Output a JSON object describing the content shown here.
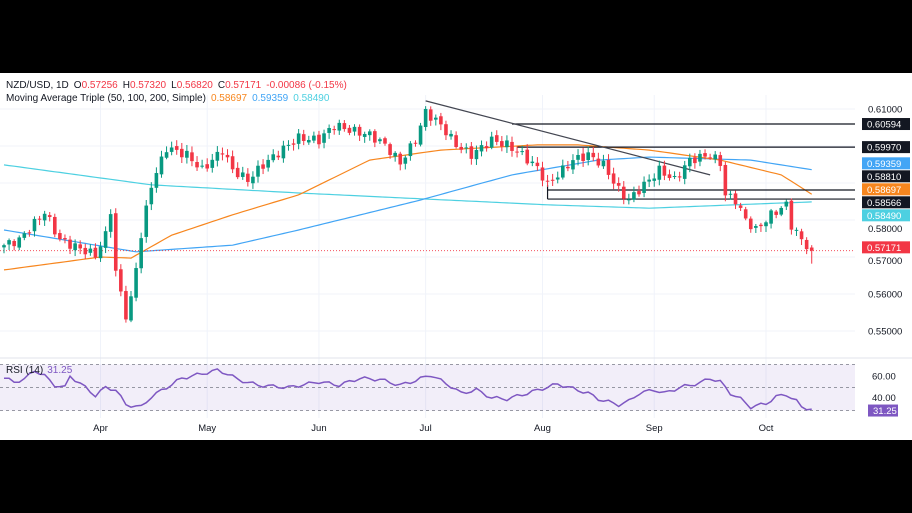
{
  "header": {
    "symbol": "NZD/USD, 1D",
    "o_label": "O",
    "o": "0.57256",
    "h_label": "H",
    "h": "0.57320",
    "l_label": "L",
    "l": "0.56820",
    "c_label": "C",
    "c": "0.57171",
    "change": "-0.00086 (-0.15%)",
    "ma_label": "Moving Average Triple (50, 100, 200, Simple)",
    "ma50": "0.58697",
    "ma100": "0.59359",
    "ma200": "0.58490",
    "rsi_label": "RSI (14)",
    "rsi_value": "31.25"
  },
  "colors": {
    "up": "#089981",
    "down": "#f23645",
    "ma50": "#f7861e",
    "ma100": "#42a5f5",
    "ma200": "#4dd0e1",
    "rsi": "#7e57c2"
  },
  "chart_data": {
    "type": "candlestick",
    "title": "NZD/USD, 1D",
    "bars": 160,
    "last_ohlc": [
      0.57256,
      0.5732,
      0.5682,
      0.57171
    ],
    "close_path": [
      [
        0,
        0.5732
      ],
      [
        3,
        0.5746
      ],
      [
        8,
        0.5822
      ],
      [
        11,
        0.5746
      ],
      [
        18,
        0.5705
      ],
      [
        20,
        0.5759
      ],
      [
        21,
        0.5827
      ],
      [
        22,
        0.5659
      ],
      [
        24,
        0.5543
      ],
      [
        25,
        0.5584
      ],
      [
        27,
        0.5759
      ],
      [
        29,
        0.5895
      ],
      [
        32,
        0.5995
      ],
      [
        36,
        0.5976
      ],
      [
        39,
        0.5935
      ],
      [
        43,
        0.5989
      ],
      [
        45,
        0.5935
      ],
      [
        48,
        0.5908
      ],
      [
        51,
        0.5949
      ],
      [
        56,
        0.6003
      ],
      [
        58,
        0.6022
      ],
      [
        62,
        0.6016
      ],
      [
        65,
        0.6057
      ],
      [
        68,
        0.6043
      ],
      [
        72,
        0.603
      ],
      [
        75,
        0.6003
      ],
      [
        78,
        0.5954
      ],
      [
        81,
        0.6016
      ],
      [
        83,
        0.6092
      ],
      [
        86,
        0.6057
      ],
      [
        89,
        0.6003
      ],
      [
        92,
        0.5976
      ],
      [
        96,
        0.6016
      ],
      [
        99,
        0.6003
      ],
      [
        102,
        0.5976
      ],
      [
        105,
        0.5941
      ],
      [
        107,
        0.5895
      ],
      [
        109,
        0.5922
      ],
      [
        112,
        0.5962
      ],
      [
        115,
        0.5976
      ],
      [
        118,
        0.5949
      ],
      [
        121,
        0.5881
      ],
      [
        123,
        0.5854
      ],
      [
        126,
        0.5895
      ],
      [
        129,
        0.5935
      ],
      [
        132,
        0.5908
      ],
      [
        135,
        0.5962
      ],
      [
        139,
        0.5976
      ],
      [
        141,
        0.5954
      ],
      [
        142,
        0.5868
      ],
      [
        144,
        0.5854
      ],
      [
        146,
        0.58
      ],
      [
        148,
        0.5773
      ],
      [
        151,
        0.5814
      ],
      [
        154,
        0.5841
      ],
      [
        155,
        0.5786
      ],
      [
        157,
        0.5746
      ],
      [
        159,
        0.57171
      ]
    ],
    "ma200_path": [
      [
        0,
        0.5949
      ],
      [
        29,
        0.5895
      ],
      [
        58,
        0.5873
      ],
      [
        107,
        0.5841
      ],
      [
        127,
        0.5832
      ],
      [
        159,
        0.5849
      ]
    ],
    "ma100_path": [
      [
        0,
        0.5773
      ],
      [
        26,
        0.5714
      ],
      [
        45,
        0.5732
      ],
      [
        58,
        0.5773
      ],
      [
        82,
        0.5854
      ],
      [
        100,
        0.5922
      ],
      [
        117,
        0.5962
      ],
      [
        127,
        0.597
      ],
      [
        147,
        0.5962
      ],
      [
        159,
        0.59359
      ]
    ],
    "ma50_path": [
      [
        0,
        0.5665
      ],
      [
        19,
        0.57
      ],
      [
        25,
        0.5697
      ],
      [
        33,
        0.5759
      ],
      [
        45,
        0.5814
      ],
      [
        58,
        0.5868
      ],
      [
        72,
        0.5962
      ],
      [
        86,
        0.5989
      ],
      [
        105,
        0.6003
      ],
      [
        113,
        0.6003
      ],
      [
        127,
        0.5989
      ],
      [
        141,
        0.5962
      ],
      [
        153,
        0.5922
      ],
      [
        159,
        0.58697
      ]
    ],
    "rsi_path": [
      [
        0,
        58
      ],
      [
        2,
        55
      ],
      [
        4,
        57
      ],
      [
        6,
        65
      ],
      [
        8,
        60
      ],
      [
        10,
        52
      ],
      [
        12,
        50
      ],
      [
        13,
        60
      ],
      [
        16,
        50
      ],
      [
        18,
        43
      ],
      [
        20,
        50
      ],
      [
        22,
        48
      ],
      [
        24,
        35
      ],
      [
        27,
        33
      ],
      [
        29,
        42
      ],
      [
        32,
        50
      ],
      [
        35,
        58
      ],
      [
        40,
        63
      ],
      [
        42,
        65
      ],
      [
        44,
        62
      ],
      [
        46,
        57
      ],
      [
        50,
        52
      ],
      [
        56,
        50
      ],
      [
        62,
        55
      ],
      [
        66,
        52
      ],
      [
        70,
        58
      ],
      [
        74,
        57
      ],
      [
        78,
        52
      ],
      [
        81,
        56
      ],
      [
        84,
        61
      ],
      [
        88,
        51
      ],
      [
        90,
        45
      ],
      [
        93,
        48
      ],
      [
        96,
        41
      ],
      [
        99,
        40
      ],
      [
        103,
        45
      ],
      [
        106,
        49
      ],
      [
        109,
        53
      ],
      [
        112,
        49
      ],
      [
        115,
        45
      ],
      [
        117,
        40
      ],
      [
        121,
        35
      ],
      [
        123,
        38
      ],
      [
        125,
        45
      ],
      [
        128,
        48
      ],
      [
        130,
        45
      ],
      [
        133,
        50
      ],
      [
        137,
        54
      ],
      [
        139,
        58
      ],
      [
        141,
        55
      ],
      [
        143,
        45
      ],
      [
        145,
        40
      ],
      [
        147,
        33
      ],
      [
        150,
        36
      ],
      [
        152,
        42
      ],
      [
        154,
        44
      ],
      [
        156,
        38
      ],
      [
        157,
        33
      ],
      [
        159,
        31.25
      ]
    ],
    "trendline": [
      [
        83,
        0.6122
      ],
      [
        139,
        0.5922
      ]
    ],
    "levels": [
      {
        "value": "0.60594",
        "from_bar": 100,
        "tag": "#131722"
      },
      {
        "value": "0.59970",
        "from_bar": 101,
        "tag": "#131722"
      },
      {
        "value": "0.58810",
        "from_bar": 107,
        "tag": "#131722"
      },
      {
        "value": "0.58566",
        "from_bar": 107,
        "tag": "#131722"
      }
    ],
    "price_ticks": [
      "0.61000",
      "0.58000",
      "0.57000",
      "0.56000",
      "0.55000"
    ],
    "price_tick_values": [
      0.61,
      0.58,
      0.57,
      0.56,
      0.55
    ],
    "rsi_ticks": [
      "60.00",
      "40.00"
    ],
    "x_labels": [
      "Apr",
      "May",
      "Jun",
      "Jul",
      "Aug",
      "Sep",
      "Oct"
    ],
    "x_label_bars": [
      19,
      40,
      62,
      83,
      106,
      128,
      150
    ],
    "ylim": [
      0.545,
      0.613
    ],
    "rsi_range": [
      30,
      70
    ]
  }
}
